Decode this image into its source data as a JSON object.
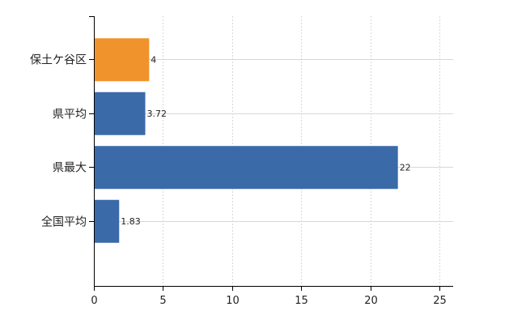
{
  "chart_data": {
    "type": "bar",
    "orientation": "horizontal",
    "categories": [
      "保土ケ谷区",
      "県平均",
      "県最大",
      "全国平均"
    ],
    "values": [
      4,
      3.72,
      22,
      1.83
    ],
    "value_labels": [
      "4",
      "3.72",
      "22",
      "1.83"
    ],
    "bar_colors": [
      "#f0932d",
      "#3b6aa8",
      "#3b6aa8",
      "#3b6aa8"
    ],
    "xlim": [
      0,
      26
    ],
    "x_ticks": [
      0,
      5,
      10,
      15,
      20,
      25
    ],
    "x_tick_labels": [
      "0",
      "5",
      "10",
      "15",
      "20",
      "25"
    ],
    "grid": true,
    "title": "",
    "xlabel": "",
    "ylabel": ""
  }
}
